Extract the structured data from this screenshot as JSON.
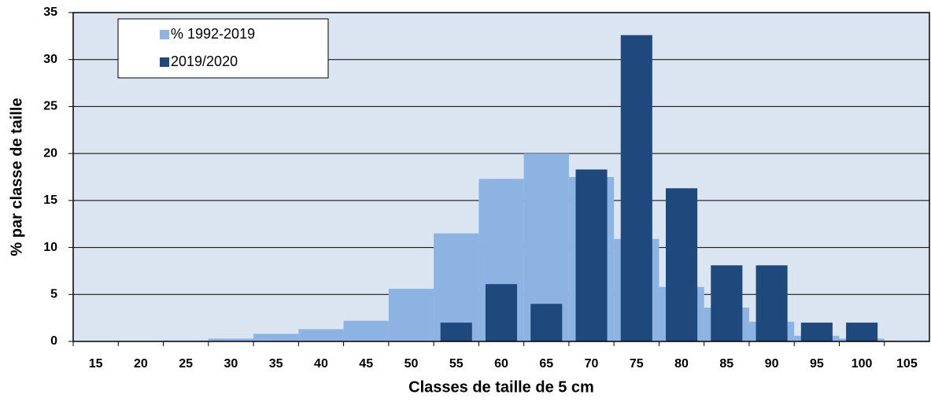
{
  "chart_data": {
    "type": "bar",
    "xlabel": "Classes de taille de 5 cm",
    "ylabel": "% par classe de taille",
    "categories": [
      "15",
      "20",
      "25",
      "30",
      "35",
      "40",
      "45",
      "50",
      "55",
      "60",
      "65",
      "70",
      "75",
      "80",
      "85",
      "90",
      "95",
      "100",
      "105"
    ],
    "series": [
      {
        "name": "% 1992-2019",
        "color": "#8db3e2",
        "values": [
          0,
          0.05,
          0.1,
          0.3,
          0.8,
          1.3,
          2.2,
          5.6,
          11.5,
          17.3,
          20,
          17.5,
          10.9,
          5.8,
          3.6,
          2.1,
          0.6,
          0.3,
          0.1
        ]
      },
      {
        "name": "2019/2020",
        "color": "#1f497d",
        "values": [
          0,
          0,
          0,
          0,
          0,
          0,
          0,
          0,
          2,
          6.1,
          4,
          18.3,
          32.6,
          16.3,
          8.1,
          8.1,
          2,
          2,
          0
        ]
      }
    ],
    "ylim": [
      0,
      35
    ],
    "yticks": [
      0,
      5,
      10,
      15,
      20,
      25,
      30,
      35
    ],
    "grid": true,
    "legend": "top-left"
  }
}
